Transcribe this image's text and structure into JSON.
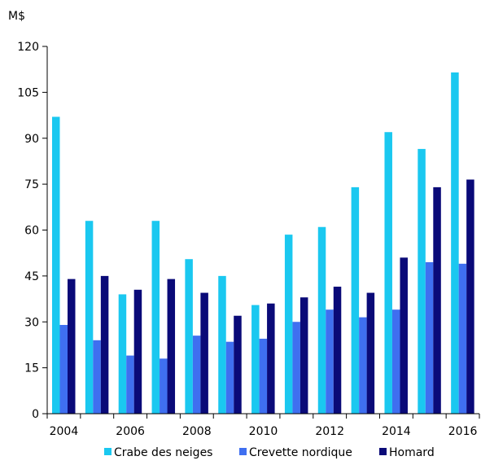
{
  "chart_data": {
    "type": "bar",
    "ylabel": "M$",
    "ylim": [
      0,
      120
    ],
    "yticks": [
      0,
      15,
      30,
      45,
      60,
      75,
      90,
      105,
      120
    ],
    "categories": [
      "2004",
      "2005",
      "2006",
      "2007",
      "2008",
      "2009",
      "2010",
      "2011",
      "2012",
      "2013",
      "2014",
      "2015",
      "2016"
    ],
    "xtick_labels": [
      "2004",
      "2006",
      "2008",
      "2010",
      "2012",
      "2014",
      "2016"
    ],
    "series": [
      {
        "name": "Crabe des neiges",
        "color": "#1ac8f0",
        "values": [
          97,
          63,
          39,
          63,
          50.5,
          45,
          35.5,
          58.5,
          61,
          74,
          92,
          86.5,
          111.5
        ]
      },
      {
        "name": "Crevette nordique",
        "color": "#3f6ff0",
        "values": [
          29,
          24,
          19,
          18,
          25.5,
          23.5,
          24.5,
          30,
          34,
          31.5,
          34,
          49.5,
          49
        ]
      },
      {
        "name": "Homard",
        "color": "#0a0a78",
        "values": [
          44,
          45,
          40.5,
          44,
          39.5,
          32,
          36,
          38,
          41.5,
          39.5,
          51,
          74,
          76.5
        ]
      }
    ],
    "grid": false,
    "legend_position": "bottom"
  }
}
